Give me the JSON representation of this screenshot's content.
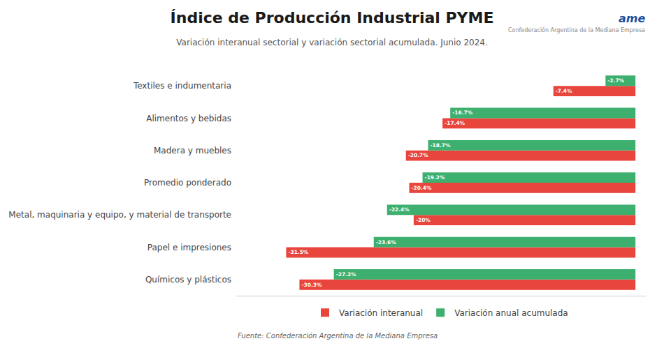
{
  "chart_data": {
    "type": "bar",
    "orientation": "horizontal",
    "title": "Índice de Producción Industrial PYME",
    "subtitle": "Variación interanual sectorial y variación sectorial acumulada. Junio 2024.",
    "categories": [
      "Textiles e indumentaria",
      "Alimentos y bebidas",
      "Madera y muebles",
      "Promedio ponderado",
      "Metal, maquinaria y equipo, y material de transporte",
      "Papel e impresiones",
      "Químicos y plásticos"
    ],
    "series": [
      {
        "name": "Variación interanual",
        "color": "#e8453c",
        "values": [
          -7.4,
          -17.4,
          -20.7,
          -20.4,
          -20.0,
          -31.5,
          -30.3
        ],
        "value_labels": [
          "-7.4%",
          "-17.4%",
          "-20.7%",
          "-20.4%",
          "-20%",
          "-31.5%",
          "-30.3%"
        ]
      },
      {
        "name": "Variación anual acumulada",
        "color": "#3daf6e",
        "values": [
          -2.7,
          -16.7,
          -18.7,
          -19.2,
          -22.4,
          -23.6,
          -27.2
        ],
        "value_labels": [
          "-2.7%",
          "-16.7%",
          "-18.7%",
          "-19.2%",
          "-22.4%",
          "-23.6%",
          "-27.2%"
        ]
      }
    ],
    "xlim": [
      -36,
      1
    ],
    "tick_labels": "y",
    "data_labels": true,
    "legend": "bottom",
    "annotations": [
      "Fuente: Confederación Argentina de la Mediana Empresa",
      "ame",
      "Confederación Argentina de la Mediana Empresa"
    ]
  }
}
